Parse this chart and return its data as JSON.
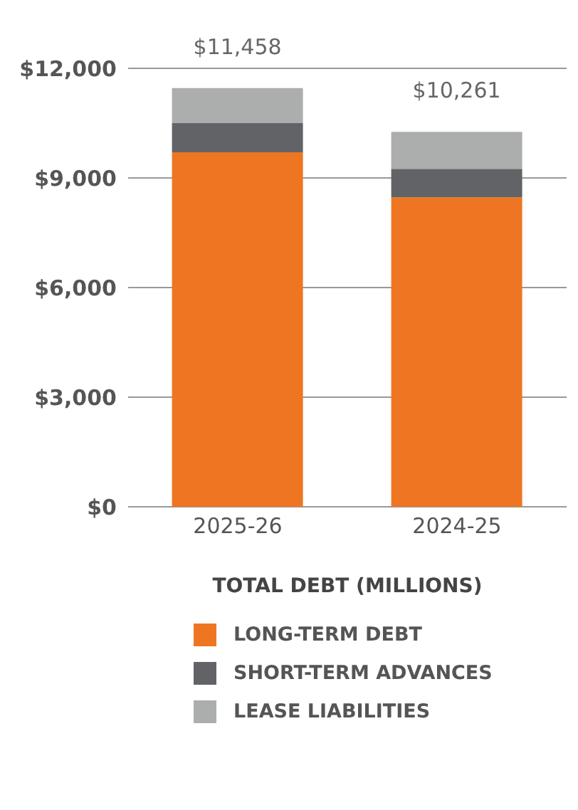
{
  "chart_data": {
    "type": "bar",
    "stacked": true,
    "xlabel": "TOTAL DEBT (MILLIONS)",
    "categories": [
      "2025-26",
      "2024-25"
    ],
    "series": [
      {
        "name": "LONG-TERM DEBT",
        "color": "#ee7623",
        "values": [
          9700,
          8470
        ]
      },
      {
        "name": "SHORT-TERM ADVANCES",
        "color": "#626366",
        "values": [
          800,
          780
        ]
      },
      {
        "name": "LEASE LIABILITIES",
        "color": "#acadad",
        "values": [
          960,
          1010
        ]
      }
    ],
    "totals": [
      "$11,458",
      "$10,261"
    ],
    "ylim": [
      0,
      12000
    ],
    "yticks": [
      {
        "value": 0,
        "label": "$0"
      },
      {
        "value": 3000,
        "label": "$3,000"
      },
      {
        "value": 6000,
        "label": "$6,000"
      },
      {
        "value": 9000,
        "label": "$9,000"
      },
      {
        "value": 12000,
        "label": "$12,000"
      }
    ],
    "grid": "y",
    "legend": "bottom"
  }
}
